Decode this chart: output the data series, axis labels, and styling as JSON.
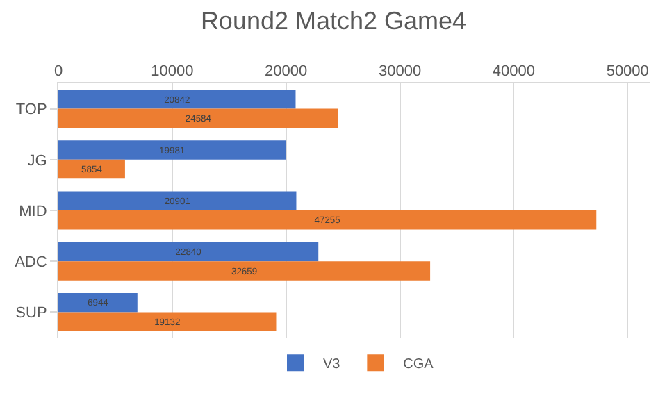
{
  "chart_data": {
    "type": "bar",
    "title": "Round2 Match2 Game4",
    "orientation": "horizontal",
    "categories": [
      "TOP",
      "JG",
      "MID",
      "ADC",
      "SUP"
    ],
    "series": [
      {
        "name": "V3",
        "color": "#4472c4",
        "values": [
          20842,
          19981,
          20901,
          22840,
          6944
        ]
      },
      {
        "name": "CGA",
        "color": "#ed7d31",
        "values": [
          24584,
          5854,
          47255,
          32659,
          19132
        ]
      }
    ],
    "xlim": [
      0,
      52000
    ],
    "xticks": [
      0,
      10000,
      20000,
      30000,
      40000,
      50000
    ],
    "grid": true,
    "legend": "bottom",
    "data_labels": true
  }
}
